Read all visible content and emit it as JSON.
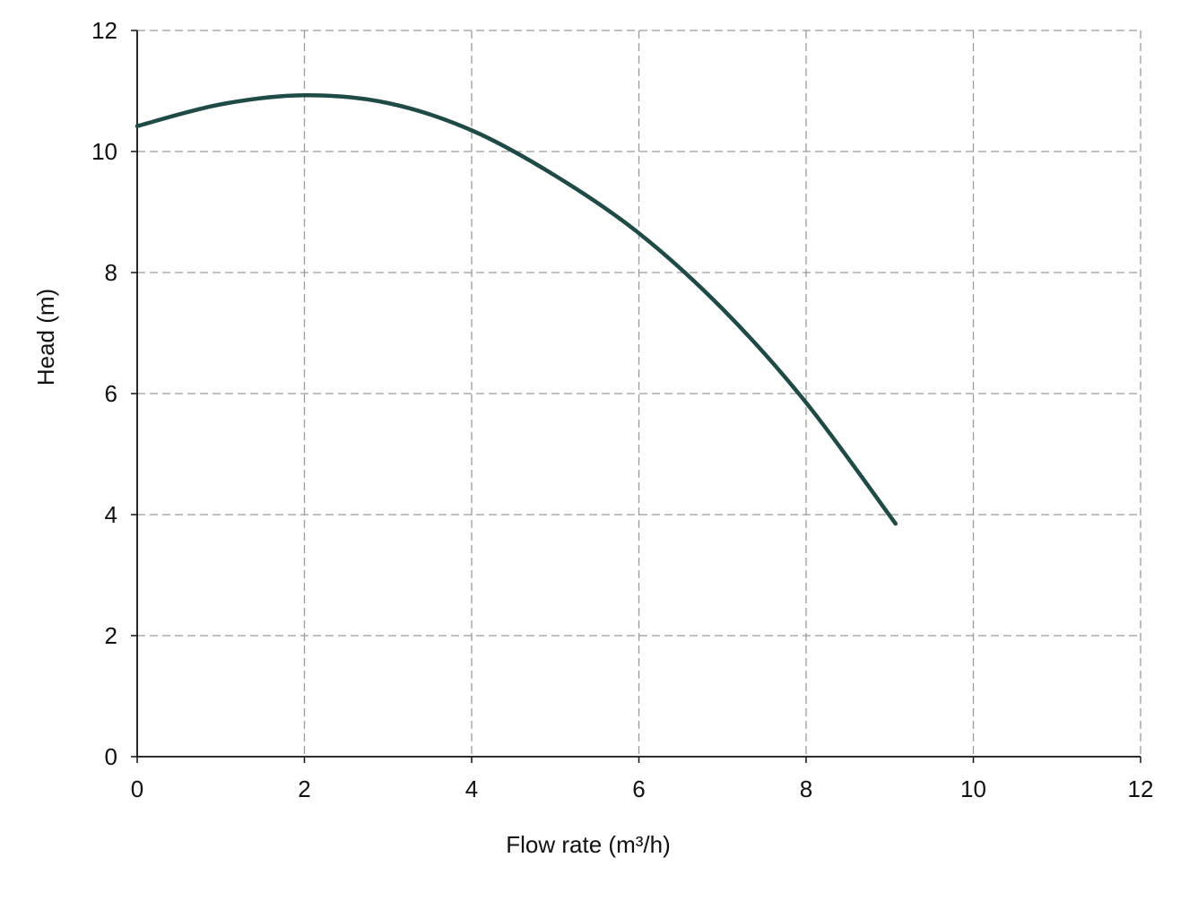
{
  "chart_data": {
    "type": "line",
    "title": "",
    "xlabel": "Flow rate (m³/h)",
    "ylabel": "Head (m)",
    "xlim": [
      0,
      12
    ],
    "ylim": [
      0,
      12
    ],
    "xticks": [
      "0",
      "2",
      "4",
      "6",
      "8",
      "10",
      "12"
    ],
    "yticks": [
      "0",
      "2",
      "4",
      "6",
      "8",
      "10",
      "12"
    ],
    "grid": true,
    "grid_style": "dashed",
    "series": [
      {
        "color": "#1f4a45",
        "x": [
          0,
          1,
          2,
          3,
          4,
          5,
          6,
          7,
          8,
          9.07
        ],
        "y": [
          10.42,
          10.78,
          10.93,
          10.8,
          10.35,
          9.6,
          8.65,
          7.4,
          5.85,
          3.85
        ]
      }
    ]
  }
}
